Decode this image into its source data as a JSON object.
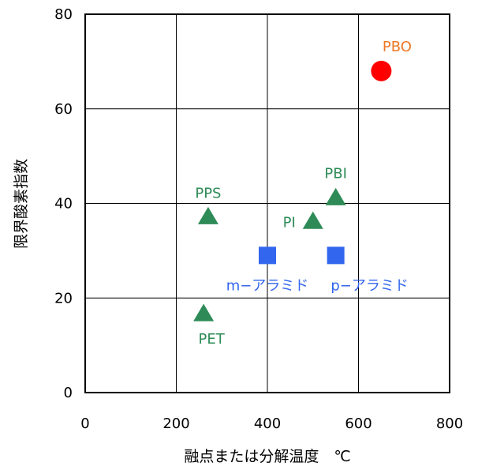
{
  "chart_data": {
    "type": "scatter",
    "title": "",
    "xlabel": "融点または分解温度　℃",
    "ylabel": "限界酸素指数",
    "xlim": [
      0,
      800
    ],
    "ylim": [
      0,
      80
    ],
    "x_ticks": [
      "0",
      "200",
      "400",
      "600",
      "800"
    ],
    "y_ticks": [
      "0",
      "20",
      "40",
      "60",
      "80"
    ],
    "grid": true,
    "legend": "none",
    "colors": {
      "triangle": "#2e8b57",
      "square": "#3366ee",
      "circle": "#ff0000",
      "pbo_label": "#ee7722",
      "aramid_label": "#3366ee",
      "triangle_label": "#2e8b57"
    },
    "series": [
      {
        "marker": "triangle",
        "points": [
          {
            "label": "PPS",
            "x": 270,
            "y": 37
          },
          {
            "label": "PET",
            "x": 260,
            "y": 16.5
          },
          {
            "label": "PI",
            "x": 500,
            "y": 36
          },
          {
            "label": "PBI",
            "x": 550,
            "y": 41
          }
        ]
      },
      {
        "marker": "square",
        "points": [
          {
            "label": "m−アラミド",
            "x": 400,
            "y": 29
          },
          {
            "label": "p−アラミド",
            "x": 550,
            "y": 29
          }
        ]
      },
      {
        "marker": "circle",
        "points": [
          {
            "label": "PBO",
            "x": 650,
            "y": 68
          }
        ]
      }
    ]
  }
}
